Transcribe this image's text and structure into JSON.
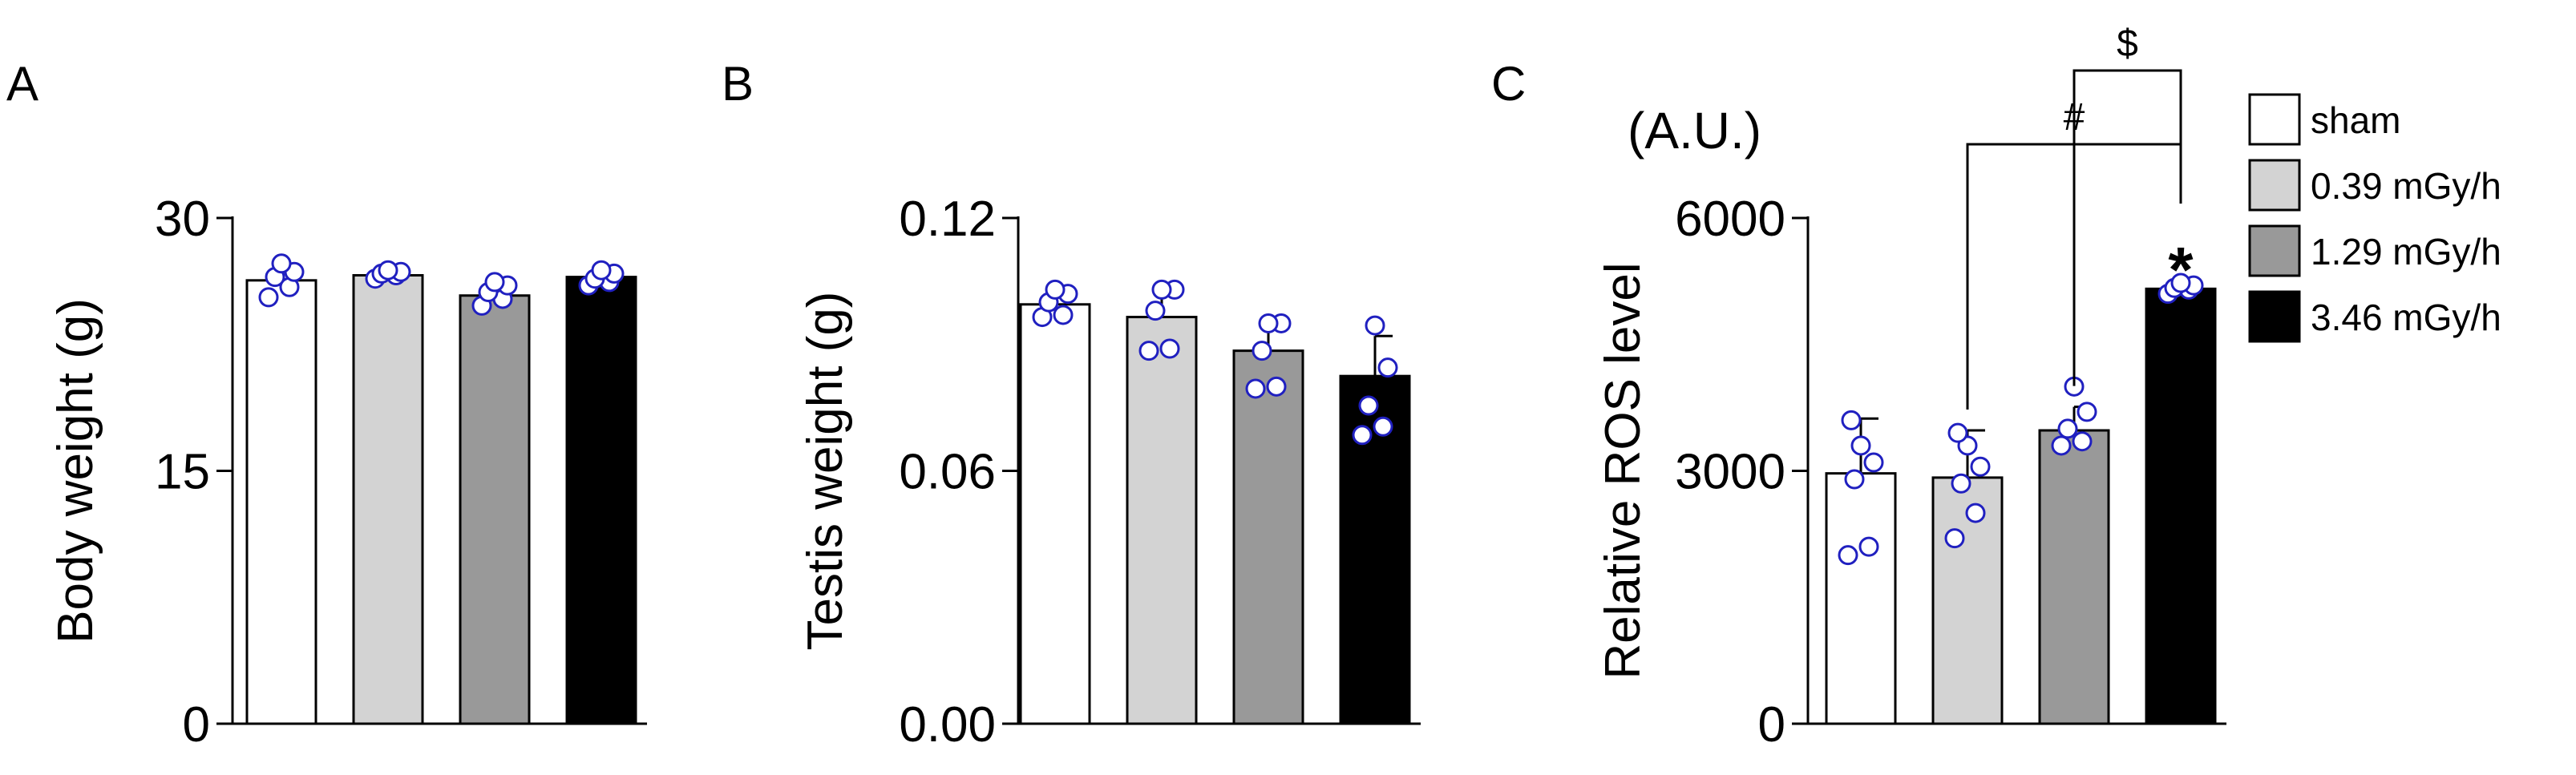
{
  "figure": {
    "panel_labels": [
      "A",
      "B",
      "C"
    ]
  },
  "legend": {
    "entries": [
      {
        "label": "sham",
        "color": "#ffffff"
      },
      {
        "label": "0.39 mGy/h",
        "color": "#d3d3d3"
      },
      {
        "label": "1.29 mGy/h",
        "color": "#999999"
      },
      {
        "label": "3.46 mGy/h",
        "color": "#000000"
      }
    ]
  },
  "colors": {
    "point_edge": "#2020c0",
    "axis": "#000000"
  },
  "chart_data": [
    {
      "type": "bar",
      "panel": "A",
      "title": "",
      "xlabel": "",
      "ylabel": "Body weight (g)",
      "ylim": [
        0,
        30
      ],
      "yticks": [
        "0",
        "15",
        "30"
      ],
      "ytick_values": [
        0,
        15,
        30
      ],
      "categories": [
        "sham",
        "0.39 mGy/h",
        "1.29 mGy/h",
        "3.46 mGy/h"
      ],
      "values": [
        26.3,
        26.6,
        25.4,
        26.5
      ],
      "errors": [
        0.6,
        0.3,
        0.5,
        0.3
      ],
      "points": [
        [
          25.3,
          25.9,
          26.5,
          26.8,
          27.3
        ],
        [
          26.4,
          26.6,
          26.7,
          26.8,
          26.9
        ],
        [
          24.8,
          25.2,
          25.6,
          26.0,
          26.2
        ],
        [
          26.0,
          26.2,
          26.4,
          26.7,
          26.9
        ]
      ],
      "annotations": []
    },
    {
      "type": "bar",
      "panel": "B",
      "title": "",
      "xlabel": "",
      "ylabel": "Testis weight (g)",
      "ylim": [
        0,
        0.12
      ],
      "yticks": [
        "0.00",
        "0.06",
        "0.12"
      ],
      "ytick_values": [
        0,
        0.06,
        0.12
      ],
      "categories": [
        "sham",
        "0.39 mGy/h",
        "1.29 mGy/h",
        "3.46 mGy/h"
      ],
      "values": [
        0.0995,
        0.0965,
        0.0885,
        0.0825
      ],
      "errors": [
        0.0035,
        0.006,
        0.0055,
        0.0095
      ],
      "points": [
        [
          0.0965,
          0.097,
          0.1,
          0.102,
          0.103
        ],
        [
          0.0885,
          0.089,
          0.098,
          0.103,
          0.103
        ],
        [
          0.0795,
          0.08,
          0.0885,
          0.095,
          0.095
        ],
        [
          0.0685,
          0.0705,
          0.0755,
          0.0845,
          0.0945
        ]
      ],
      "annotations": []
    },
    {
      "type": "bar",
      "panel": "C",
      "title": "",
      "xlabel": "",
      "ylabel": "Relative ROS level",
      "yunit": "(A.U.)",
      "ylim": [
        0,
        6000
      ],
      "yticks": [
        "0",
        "3000",
        "6000"
      ],
      "ytick_values": [
        0,
        3000,
        6000
      ],
      "categories": [
        "sham",
        "0.39 mGy/h",
        "1.29 mGy/h",
        "3.46 mGy/h"
      ],
      "values": [
        2970,
        2920,
        3480,
        5160
      ],
      "errors": [
        650,
        560,
        280,
        60
      ],
      "points": [
        [
          2000,
          2100,
          2900,
          3100,
          3300,
          3600
        ],
        [
          2200,
          2500,
          2850,
          3050,
          3300,
          3450
        ],
        [
          3300,
          3350,
          3500,
          3700,
          4000
        ],
        [
          5100,
          5150,
          5170,
          5200,
          5230
        ]
      ],
      "annotations": [
        {
          "text": "*",
          "category_index": 3
        },
        {
          "text": "$",
          "from_index": 2,
          "to_index": 3
        },
        {
          "text": "#",
          "from_index": 1,
          "to_index": 3
        }
      ]
    }
  ]
}
